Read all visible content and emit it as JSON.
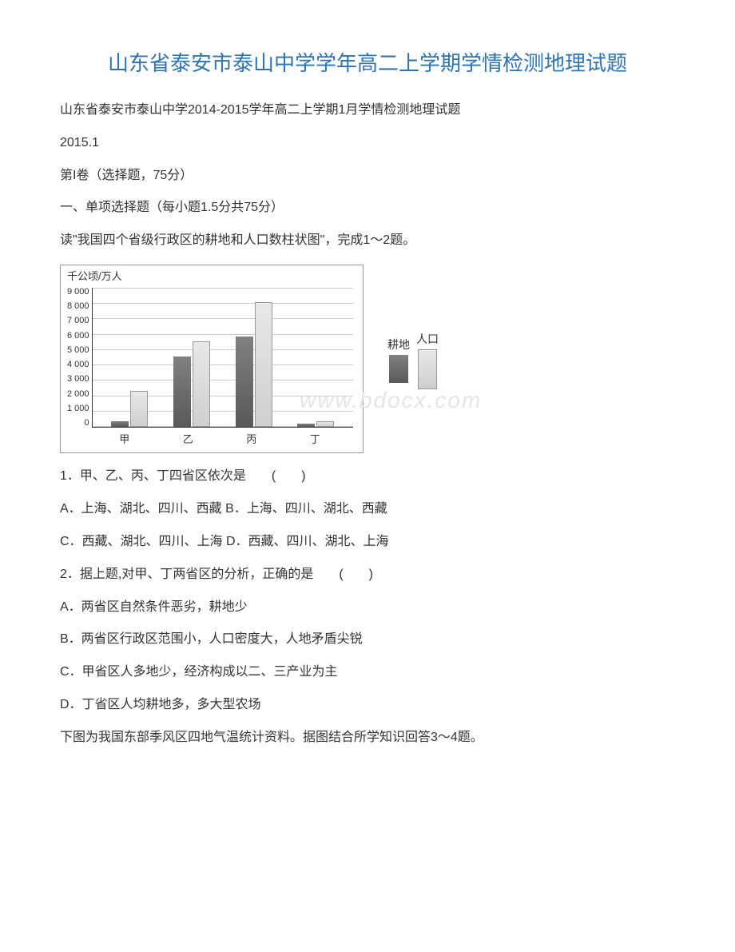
{
  "title": "山东省泰安市泰山中学学年高二上学期学情检测地理试题",
  "subtitle": "山东省泰安市泰山中学2014-2015学年高二上学期1月学情检测地理试题",
  "date": "2015.1",
  "section1": "第I卷（选择题，75分）",
  "section1_desc": "一、单项选择题（每小题1.5分共75分）",
  "chart_intro": "读\"我国四个省级行政区的耕地和人口数柱状图\"，完成1～2题。",
  "chart": {
    "yaxis_label": "千公顷/万人",
    "yticks": [
      "9 000",
      "8 000",
      "7 000",
      "6 000",
      "5 000",
      "4 000",
      "3 000",
      "2 000",
      "1 000",
      "0"
    ],
    "categories": [
      "甲",
      "乙",
      "丙",
      "丁"
    ],
    "cultivated": [
      350,
      4500,
      5800,
      200
    ],
    "population": [
      2300,
      5500,
      8000,
      350
    ],
    "ymax": 9000,
    "colors": {
      "cultivated": "#6b6b6b",
      "population": "#e0e0e0",
      "grid": "#cccccc",
      "axis": "#333333"
    },
    "legend": {
      "population_label": "人口",
      "cultivated_label": "耕地"
    },
    "watermark": "www.bdocx.com"
  },
  "q1": "1．甲、乙、丙、丁四省区依次是　　(　　)",
  "q1a": "A．上海、湖北、四川、西藏 B．上海、四川、湖北、西藏",
  "q1b": "C．西藏、湖北、四川、上海 D．西藏、四川、湖北、上海",
  "q2": "2．据上题,对甲、丁两省区的分析，正确的是　　(　　)",
  "q2a": "A．两省区自然条件恶劣，耕地少",
  "q2b": "B．两省区行政区范围小，人口密度大，人地矛盾尖锐",
  "q2c": "C．甲省区人多地少，经济构成以二、三产业为主",
  "q2d": "D．丁省区人均耕地多，多大型农场",
  "q3_intro": "下图为我国东部季风区四地气温统计资料。据图结合所学知识回答3～4题。"
}
